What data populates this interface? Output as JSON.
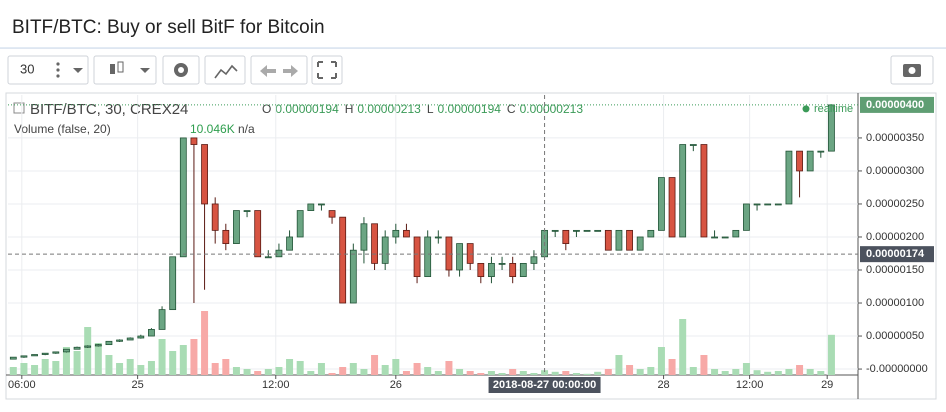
{
  "header": {
    "title": "BITF/BTC: Buy or sell BitF for Bitcoin"
  },
  "toolbar": {
    "interval": "30"
  },
  "chart_data": {
    "type": "candlestick",
    "symbol": "BITF/BTC, 30, CREX24",
    "ohlc_legend": [
      {
        "label": "O",
        "value": "0.00000194"
      },
      {
        "label": "H",
        "value": "0.00000213"
      },
      {
        "label": "L",
        "value": "0.00000194"
      },
      {
        "label": "C",
        "value": "0.00000213"
      }
    ],
    "up_color": "#6ba583",
    "down_color": "#d75442",
    "open": [
      1.5e-07,
      1.8e-07,
      2e-07,
      2.2e-07,
      2.4e-07,
      2.6e-07,
      3e-07,
      3.3e-07,
      3.5e-07,
      3.7e-07,
      4.2e-07,
      4.4e-07,
      4.7e-07,
      5e-07,
      6e-07,
      9e-07,
      1.7e-06,
      3.5e-06,
      3.4e-06,
      2.5e-06,
      2.1e-06,
      1.9e-06,
      2.4e-06,
      2.4e-06,
      1.7e-06,
      1.7e-06,
      1.8e-06,
      2e-06,
      2.4e-06,
      2.5e-06,
      2.4e-06,
      2.3e-06,
      1e-06,
      1.8e-06,
      2.2e-06,
      1.6e-06,
      2e-06,
      2.1e-06,
      2e-06,
      1.4e-06,
      2e-06,
      2e-06,
      1.5e-06,
      1.9e-06,
      1.6e-06,
      1.4e-06,
      1.6e-06,
      1.6e-06,
      1.4e-06,
      1.6e-06,
      1.7e-06,
      2.1e-06,
      2.1e-06,
      2.1e-06,
      2.1e-06,
      2.1e-06,
      2.1e-06,
      1.8e-06,
      2.1e-06,
      1.8e-06,
      2e-06,
      2.1e-06,
      2.9e-06,
      2e-06,
      3.4e-06,
      3.4e-06,
      2e-06,
      2e-06,
      2e-06,
      2.1e-06,
      2.5e-06,
      2.5e-06,
      2.5e-06,
      2.5e-06,
      3.3e-06,
      3e-06,
      3.3e-06,
      3.3e-06
    ],
    "high": [
      1.8e-07,
      2e-07,
      2.2e-07,
      2.4e-07,
      2.6e-07,
      3e-07,
      3.4e-07,
      3.6e-07,
      3.8e-07,
      4.2e-07,
      4.5e-07,
      4.8e-07,
      5.2e-07,
      6.2e-07,
      9.5e-07,
      1.7e-06,
      3.5e-06,
      3.5e-06,
      3.4e-06,
      2.6e-06,
      2.2e-06,
      2.4e-06,
      2.4e-06,
      2.4e-06,
      1.8e-06,
      1.9e-06,
      2.1e-06,
      2.4e-06,
      2.5e-06,
      2.5e-06,
      2.4e-06,
      2.3e-06,
      1.9e-06,
      2.3e-06,
      2.2e-06,
      2.1e-06,
      2.2e-06,
      2.2e-06,
      2e-06,
      2.1e-06,
      2.1e-06,
      2e-06,
      1.9e-06,
      1.9e-06,
      1.6e-06,
      1.7e-06,
      1.7e-06,
      1.7e-06,
      1.6e-06,
      1.8e-06,
      2.1e-06,
      2.1e-06,
      2.1e-06,
      2.1e-06,
      2.1e-06,
      2.1e-06,
      2.1e-06,
      2.1e-06,
      2.1e-06,
      2e-06,
      2.1e-06,
      2.9e-06,
      2.9e-06,
      3.4e-06,
      3.4e-06,
      3.4e-06,
      2.1e-06,
      2e-06,
      2.1e-06,
      2.5e-06,
      2.5e-06,
      2.5e-06,
      2.5e-06,
      3.3e-06,
      3.3e-06,
      3.3e-06,
      3.3e-06,
      4e-06
    ],
    "low": [
      1.5e-07,
      1.7e-07,
      2e-07,
      2.1e-07,
      2.3e-07,
      2.5e-07,
      3e-07,
      3.2e-07,
      3.4e-07,
      3.7e-07,
      4.1e-07,
      4.4e-07,
      4.6e-07,
      5e-07,
      6e-07,
      9e-07,
      1.7e-06,
      1e-06,
      1.2e-06,
      1.9e-06,
      1.8e-06,
      1.9e-06,
      2.3e-06,
      1.7e-06,
      1.7e-06,
      1.7e-06,
      1.8e-06,
      2e-06,
      2.4e-06,
      2.4e-06,
      2.2e-06,
      1e-06,
      1e-06,
      1.6e-06,
      1.5e-06,
      1.5e-06,
      1.9e-06,
      2e-06,
      1.3e-06,
      1.4e-06,
      1.9e-06,
      1.4e-06,
      1.4e-06,
      1.5e-06,
      1.3e-06,
      1.3e-06,
      1.5e-06,
      1.3e-06,
      1.4e-06,
      1.5e-06,
      1.7e-06,
      2e-06,
      1.8e-06,
      2e-06,
      2.1e-06,
      2.1e-06,
      1.8e-06,
      1.8e-06,
      1.8e-06,
      1.8e-06,
      2e-06,
      2.1e-06,
      2e-06,
      2e-06,
      3.3e-06,
      2e-06,
      2e-06,
      2e-06,
      2e-06,
      2.1e-06,
      2.4e-06,
      2.5e-06,
      2.5e-06,
      2.5e-06,
      2.6e-06,
      3e-06,
      3.2e-06,
      3.3e-06
    ],
    "close": [
      1.8e-07,
      2e-07,
      2.2e-07,
      2.4e-07,
      2.6e-07,
      3e-07,
      3.3e-07,
      3.5e-07,
      3.7e-07,
      4.2e-07,
      4.4e-07,
      4.7e-07,
      5e-07,
      6e-07,
      9e-07,
      1.7e-06,
      3.5e-06,
      3.4e-06,
      2.5e-06,
      2.1e-06,
      1.9e-06,
      2.4e-06,
      2.4e-06,
      1.7e-06,
      1.7e-06,
      1.8e-06,
      2e-06,
      2.4e-06,
      2.5e-06,
      2.5e-06,
      2.3e-06,
      1e-06,
      1.8e-06,
      2.2e-06,
      1.6e-06,
      2e-06,
      2.1e-06,
      2e-06,
      1.4e-06,
      2e-06,
      2e-06,
      1.5e-06,
      1.9e-06,
      1.6e-06,
      1.4e-06,
      1.6e-06,
      1.6e-06,
      1.4e-06,
      1.6e-06,
      1.7e-06,
      2.1e-06,
      2.1e-06,
      1.9e-06,
      2.1e-06,
      2.1e-06,
      2.1e-06,
      1.8e-06,
      2.1e-06,
      1.8e-06,
      2e-06,
      2.1e-06,
      2.9e-06,
      2e-06,
      3.4e-06,
      3.4e-06,
      2e-06,
      2e-06,
      2e-06,
      2.1e-06,
      2.5e-06,
      2.5e-06,
      2.5e-06,
      2.5e-06,
      3.3e-06,
      3e-06,
      3.3e-06,
      3.3e-06,
      4e-06
    ],
    "volume": {
      "name": "Volume (false, 20)",
      "last_label": "10.046K",
      "last_extra": "n/a",
      "up_color": "#a9dcb4",
      "down_color": "#f7a9a7",
      "ylim": [
        0,
        16500
      ],
      "values": [
        2000,
        3000,
        2500,
        4000,
        3500,
        7000,
        6000,
        12000,
        8000,
        5000,
        3000,
        4000,
        2500,
        3500,
        9000,
        6000,
        7500,
        9000,
        16000,
        3000,
        4000,
        2000,
        1500,
        1000,
        1500,
        2000,
        4000,
        3500,
        1000,
        3000,
        500,
        2000,
        3000,
        1500,
        5000,
        2500,
        4000,
        1000,
        3000,
        2000,
        1000,
        3500,
        1500,
        1000,
        500,
        1000,
        500,
        1500,
        1000,
        500,
        1200,
        800,
        1000,
        500,
        300,
        800,
        1500,
        5000,
        2500,
        1500,
        2000,
        7000,
        4000,
        14000,
        2000,
        5000,
        1500,
        1000,
        1500,
        3000,
        1200,
        800,
        1000,
        1500,
        2500,
        1500,
        1000,
        10046
      ]
    },
    "xlim": [
      0,
      80
    ],
    "xticks": [
      {
        "value": 1.3,
        "label": "06:00"
      },
      {
        "value": 12.2,
        "label": "25"
      },
      {
        "value": 25.2,
        "label": "12:00"
      },
      {
        "value": 36.5,
        "label": "26"
      },
      {
        "value": 61.7,
        "label": "28"
      },
      {
        "value": 69.8,
        "label": "12:00"
      },
      {
        "value": 77.1,
        "label": "29"
      }
    ],
    "ylim": [
      -9e-08,
      4.15e-06
    ],
    "yticks": [
      {
        "value": 0,
        "label": "-0.00000000"
      },
      {
        "value": 5e-07,
        "label": "0.00000050"
      },
      {
        "value": 1e-06,
        "label": "0.00000100"
      },
      {
        "value": 1.5e-06,
        "label": "0.00000150"
      },
      {
        "value": 2e-06,
        "label": "0.00000200"
      },
      {
        "value": 2.5e-06,
        "label": "0.00000250"
      },
      {
        "value": 3e-06,
        "label": "0.00000300"
      },
      {
        "value": 3.5e-06,
        "label": "0.00000350"
      }
    ],
    "grid": true,
    "last_price": {
      "value": 4e-06,
      "label": "0.00000400",
      "note": "realtime"
    },
    "crosshair": {
      "price": {
        "value": 1.74e-06,
        "label": "0.00000174"
      },
      "time": {
        "value": 50.5,
        "label": "2018-08-27 00:00:00"
      }
    }
  }
}
